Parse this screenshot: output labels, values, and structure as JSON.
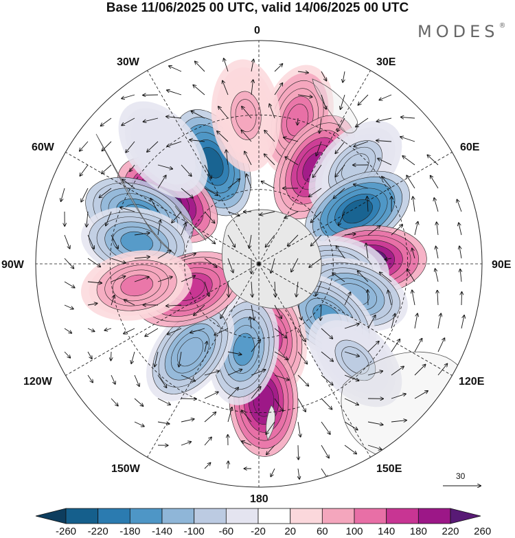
{
  "title": "Base 11/06/2025 00 UTC, valid 14/06/2025 00 UTC",
  "logo": {
    "text": "MODES",
    "mark": "®"
  },
  "longitude_labels": {
    "lon_0": "0",
    "lon_30e": "30E",
    "lon_60e": "60E",
    "lon_90e": "90E",
    "lon_120e": "120E",
    "lon_150e": "150E",
    "lon_180": "180",
    "lon_150w": "150W",
    "lon_120w": "120W",
    "lon_90w": "90W",
    "lon_60w": "60W",
    "lon_30w": "30W"
  },
  "reference_vector": {
    "label": "30"
  },
  "colorbar": {
    "colors": [
      "#0d3d5e",
      "#155f8c",
      "#2b7bb0",
      "#4e96c6",
      "#8fb6d8",
      "#bccbe2",
      "#e4e4f0",
      "#ffffff",
      "#fbd8dc",
      "#f4a6bd",
      "#e86fa6",
      "#c83593",
      "#9c1787",
      "#581a75"
    ],
    "tick_labels": [
      "-260",
      "-220",
      "-180",
      "-140",
      "-100",
      "-60",
      "-20",
      "20",
      "60",
      "100",
      "140",
      "180",
      "220",
      "260"
    ]
  },
  "field_anomalies": [
    {
      "lon": -25,
      "lat": -45,
      "value": -230
    },
    {
      "lon": -55,
      "lat": -45,
      "value": 250
    },
    {
      "lon": -68,
      "lat": -38,
      "value": -180
    },
    {
      "lon": -80,
      "lat": -40,
      "value": -150
    },
    {
      "lon": 15,
      "lat": -30,
      "value": 120
    },
    {
      "lon": 30,
      "lat": -45,
      "value": 190
    },
    {
      "lon": 45,
      "lat": -35,
      "value": -90
    },
    {
      "lon": 62,
      "lat": -45,
      "value": -230
    },
    {
      "lon": 88,
      "lat": -45,
      "value": 220
    },
    {
      "lon": 95,
      "lat": -60,
      "value": -110
    },
    {
      "lon": 108,
      "lat": -50,
      "value": -140
    },
    {
      "lon": 128,
      "lat": -55,
      "value": -160
    },
    {
      "lon": 170,
      "lat": -60,
      "value": 140
    },
    {
      "lon": 178,
      "lat": -35,
      "value": 210
    },
    {
      "lon": -170,
      "lat": -55,
      "value": -150
    },
    {
      "lon": -142,
      "lat": -45,
      "value": -140
    },
    {
      "lon": -110,
      "lat": -60,
      "value": 170
    },
    {
      "lon": -100,
      "lat": -40,
      "value": 110
    },
    {
      "lon": -5,
      "lat": -30,
      "value": 70
    },
    {
      "lon": 135,
      "lat": -35,
      "value": -70
    },
    {
      "lon": -40,
      "lat": -30,
      "value": -60
    }
  ]
}
